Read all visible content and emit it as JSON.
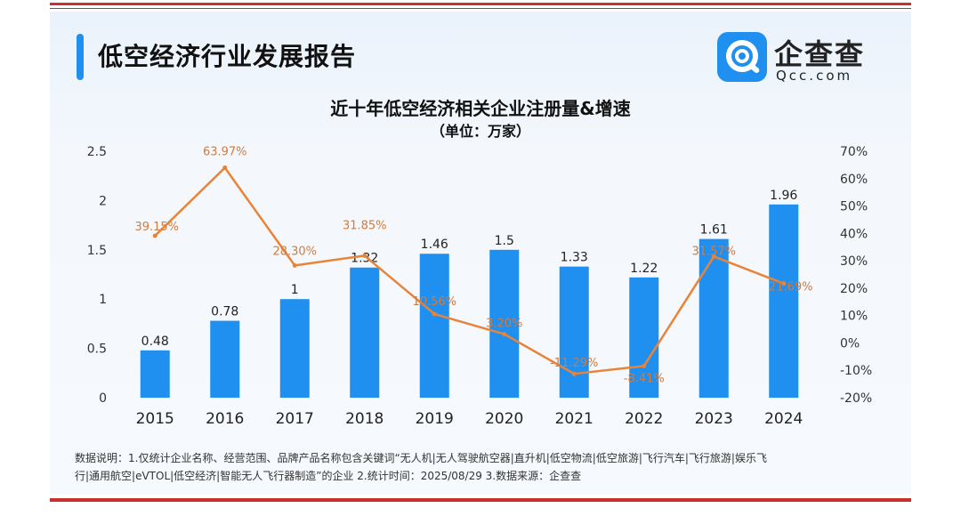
{
  "report_title": "低空经济行业发展报告",
  "logo": {
    "name": "企查查",
    "domain": "Qcc.com",
    "brand_color": "#1f8ff0"
  },
  "chart_data": {
    "type": "bar+line",
    "title": "近十年低空经济相关企业注册量&增速",
    "subtitle": "（单位：万家）",
    "categories": [
      "2015",
      "2016",
      "2017",
      "2018",
      "2019",
      "2020",
      "2021",
      "2022",
      "2023",
      "2024"
    ],
    "series": [
      {
        "name": "注册量",
        "type": "bar",
        "axis": "left",
        "color": "#1f8ff0",
        "values": [
          0.48,
          0.78,
          1,
          1.32,
          1.46,
          1.5,
          1.33,
          1.22,
          1.61,
          1.96
        ],
        "labels": [
          "0.48",
          "0.78",
          "1",
          "1.32",
          "1.46",
          "1.5",
          "1.33",
          "1.22",
          "1.61",
          "1.96"
        ]
      },
      {
        "name": "增速",
        "type": "line",
        "axis": "right",
        "color": "#e8843a",
        "values": [
          39.15,
          63.97,
          28.3,
          31.85,
          10.56,
          3.2,
          -11.29,
          -8.41,
          31.57,
          21.69
        ],
        "labels": [
          "39.15%",
          "63.97%",
          "28.30%",
          "31.85%",
          "10.56%",
          "3.20%",
          "-11.29%",
          "-8.41%",
          "31.57%",
          "21.69%"
        ]
      }
    ],
    "y_left": {
      "min": 0,
      "max": 2.5,
      "ticks": [
        "0",
        "0.5",
        "1",
        "1.5",
        "2",
        "2.5"
      ],
      "tick_values": [
        0,
        0.5,
        1,
        1.5,
        2,
        2.5
      ]
    },
    "y_right": {
      "min": -20,
      "max": 70,
      "ticks": [
        "-20%",
        "-10%",
        "0%",
        "10%",
        "20%",
        "30%",
        "40%",
        "50%",
        "60%",
        "70%"
      ],
      "tick_values": [
        -20,
        -10,
        0,
        10,
        20,
        30,
        40,
        50,
        60,
        70
      ]
    },
    "label_color": "#d47a3a"
  },
  "footnote": {
    "line1": "数据说明：1.仅统计企业名称、经营范围、品牌产品名称包含关键词“无人机|无人驾驶航空器|直升机|低空物流|低空旅游|飞行汽车|飞行旅游|娱乐飞",
    "line2": "行|通用航空|eVTOL|低空经济|智能无人飞行器制造”的企业  2.统计时间：2025/08/29  3.数据来源：企查查"
  }
}
